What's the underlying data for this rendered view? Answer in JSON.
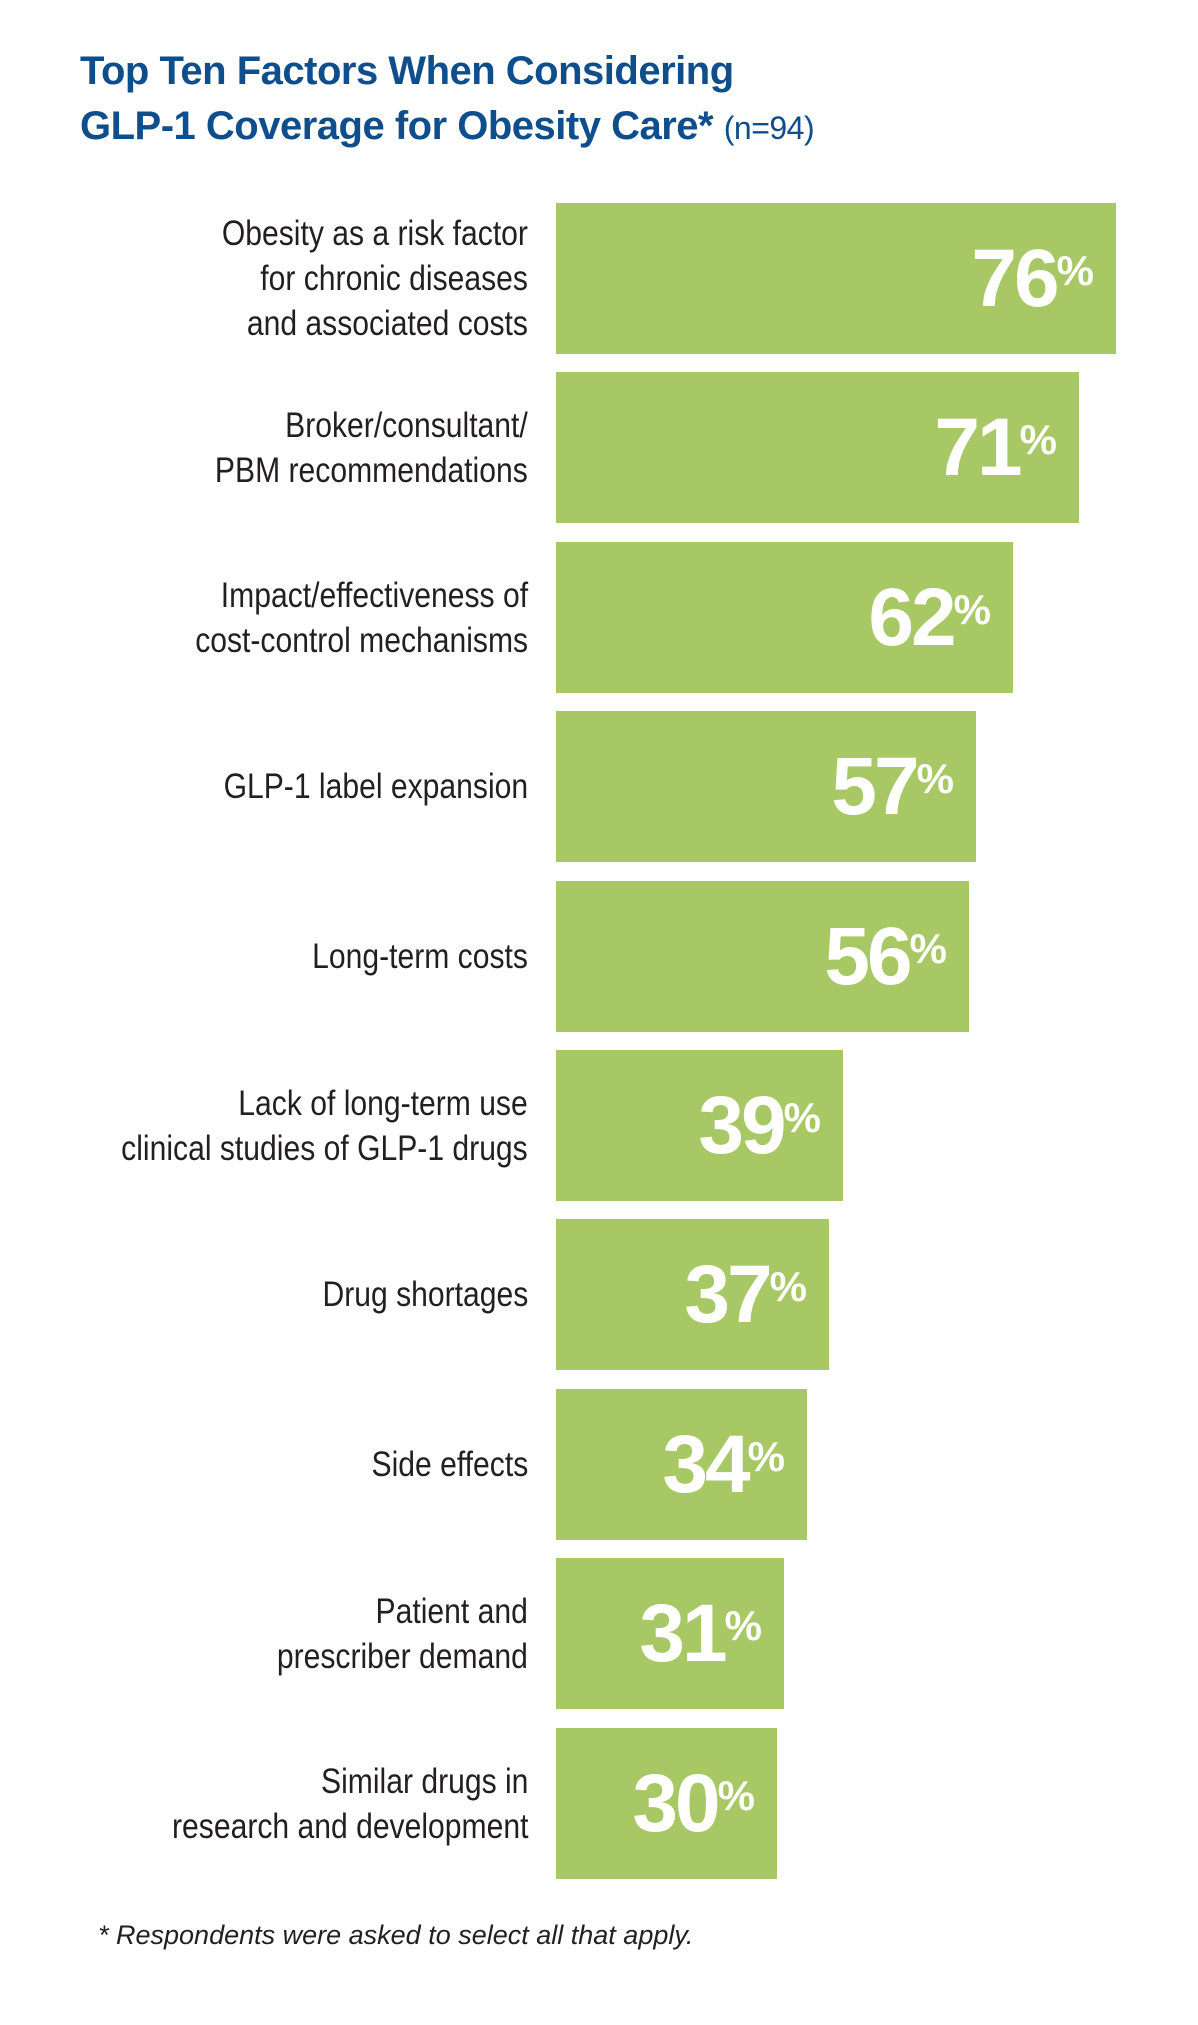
{
  "title": {
    "line1": "Top Ten Factors When Considering",
    "line2": "GLP-1 Coverage for Obesity Care*",
    "n_label": "(n=94)"
  },
  "footnote": "* Respondents were asked to select all that apply.",
  "chart_data": {
    "type": "bar",
    "orientation": "horizontal",
    "title": "Top Ten Factors When Considering GLP-1 Coverage for Obesity Care* (n=94)",
    "unit": "%",
    "color": "#a7c864",
    "value_color": "#ffffff",
    "xlim": [
      0,
      76
    ],
    "categories": [
      [
        "Obesity as a risk factor",
        "for chronic diseases",
        "and associated costs"
      ],
      [
        "Broker/consultant/",
        "PBM recommendations"
      ],
      [
        "Impact/effectiveness of",
        "cost-control mechanisms"
      ],
      [
        "GLP-1 label expansion"
      ],
      [
        "Long-term costs"
      ],
      [
        "Lack of long-term use",
        "clinical studies of GLP-1 drugs"
      ],
      [
        "Drug shortages"
      ],
      [
        "Side effects"
      ],
      [
        "Patient and",
        "prescriber demand"
      ],
      [
        "Similar drugs in",
        "research and development"
      ]
    ],
    "values": [
      76,
      71,
      62,
      57,
      56,
      39,
      37,
      34,
      31,
      30
    ]
  }
}
